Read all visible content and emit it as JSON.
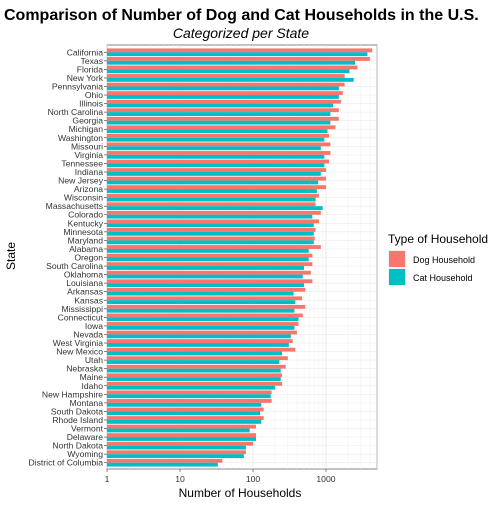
{
  "chart_data": {
    "type": "bar",
    "orientation": "horizontal",
    "title": "Comparison of Number of Dog and Cat Households in the U.S.",
    "subtitle": "Categorized per State",
    "xlabel": "Number of Households",
    "ylabel": "State",
    "x_scale": "log10",
    "xlim": [
      1,
      5000
    ],
    "x_ticks": [
      1,
      10,
      100,
      1000
    ],
    "x_tick_labels": [
      "1",
      "10",
      "100",
      "1000"
    ],
    "grid": true,
    "legend": {
      "title": "Type of Household",
      "position": "right",
      "entries": [
        {
          "label": "Dog Household",
          "color": "#F8766D"
        },
        {
          "label": "Cat Household",
          "color": "#00BFC4"
        }
      ]
    },
    "categories": [
      "California",
      "Texas",
      "Florida",
      "New York",
      "Pennsylvania",
      "Ohio",
      "Illinois",
      "North Carolina",
      "Georgia",
      "Michigan",
      "Washington",
      "Missouri",
      "Virginia",
      "Tennessee",
      "Indiana",
      "New Jersey",
      "Arizona",
      "Wisconsin",
      "Massachusetts",
      "Colorado",
      "Kentucky",
      "Minnesota",
      "Maryland",
      "Alabama",
      "Oregon",
      "South Carolina",
      "Oklahoma",
      "Louisiana",
      "Arkansas",
      "Kansas",
      "Mississippi",
      "Connecticut",
      "Iowa",
      "Nevada",
      "West Virginia",
      "New Mexico",
      "Utah",
      "Nebraska",
      "Maine",
      "Idaho",
      "New Hampshire",
      "Montana",
      "South Dakota",
      "Rhode Island",
      "Vermont",
      "Delaware",
      "North Dakota",
      "Wyoming",
      "District of Columbia"
    ],
    "series": [
      {
        "name": "Dog Household",
        "color": "#F8766D",
        "values": [
          4300,
          4000,
          2700,
          1800,
          1800,
          1700,
          1600,
          1500,
          1500,
          1350,
          1100,
          1150,
          1150,
          1100,
          1000,
          1000,
          1000,
          800,
          720,
          850,
          800,
          720,
          700,
          850,
          650,
          650,
          620,
          650,
          520,
          470,
          520,
          480,
          420,
          400,
          350,
          380,
          300,
          280,
          250,
          250,
          180,
          180,
          140,
          140,
          110,
          110,
          100,
          80,
          38
        ]
      },
      {
        "name": "Cat Household",
        "color": "#00BFC4",
        "values": [
          3700,
          2500,
          2100,
          2400,
          1500,
          1500,
          1250,
          1150,
          1150,
          1050,
          950,
          850,
          950,
          950,
          850,
          780,
          750,
          720,
          900,
          650,
          680,
          680,
          680,
          580,
          580,
          500,
          480,
          500,
          360,
          380,
          370,
          420,
          370,
          330,
          310,
          250,
          230,
          240,
          240,
          200,
          175,
          130,
          125,
          130,
          90,
          110,
          80,
          75,
          33
        ]
      }
    ]
  }
}
